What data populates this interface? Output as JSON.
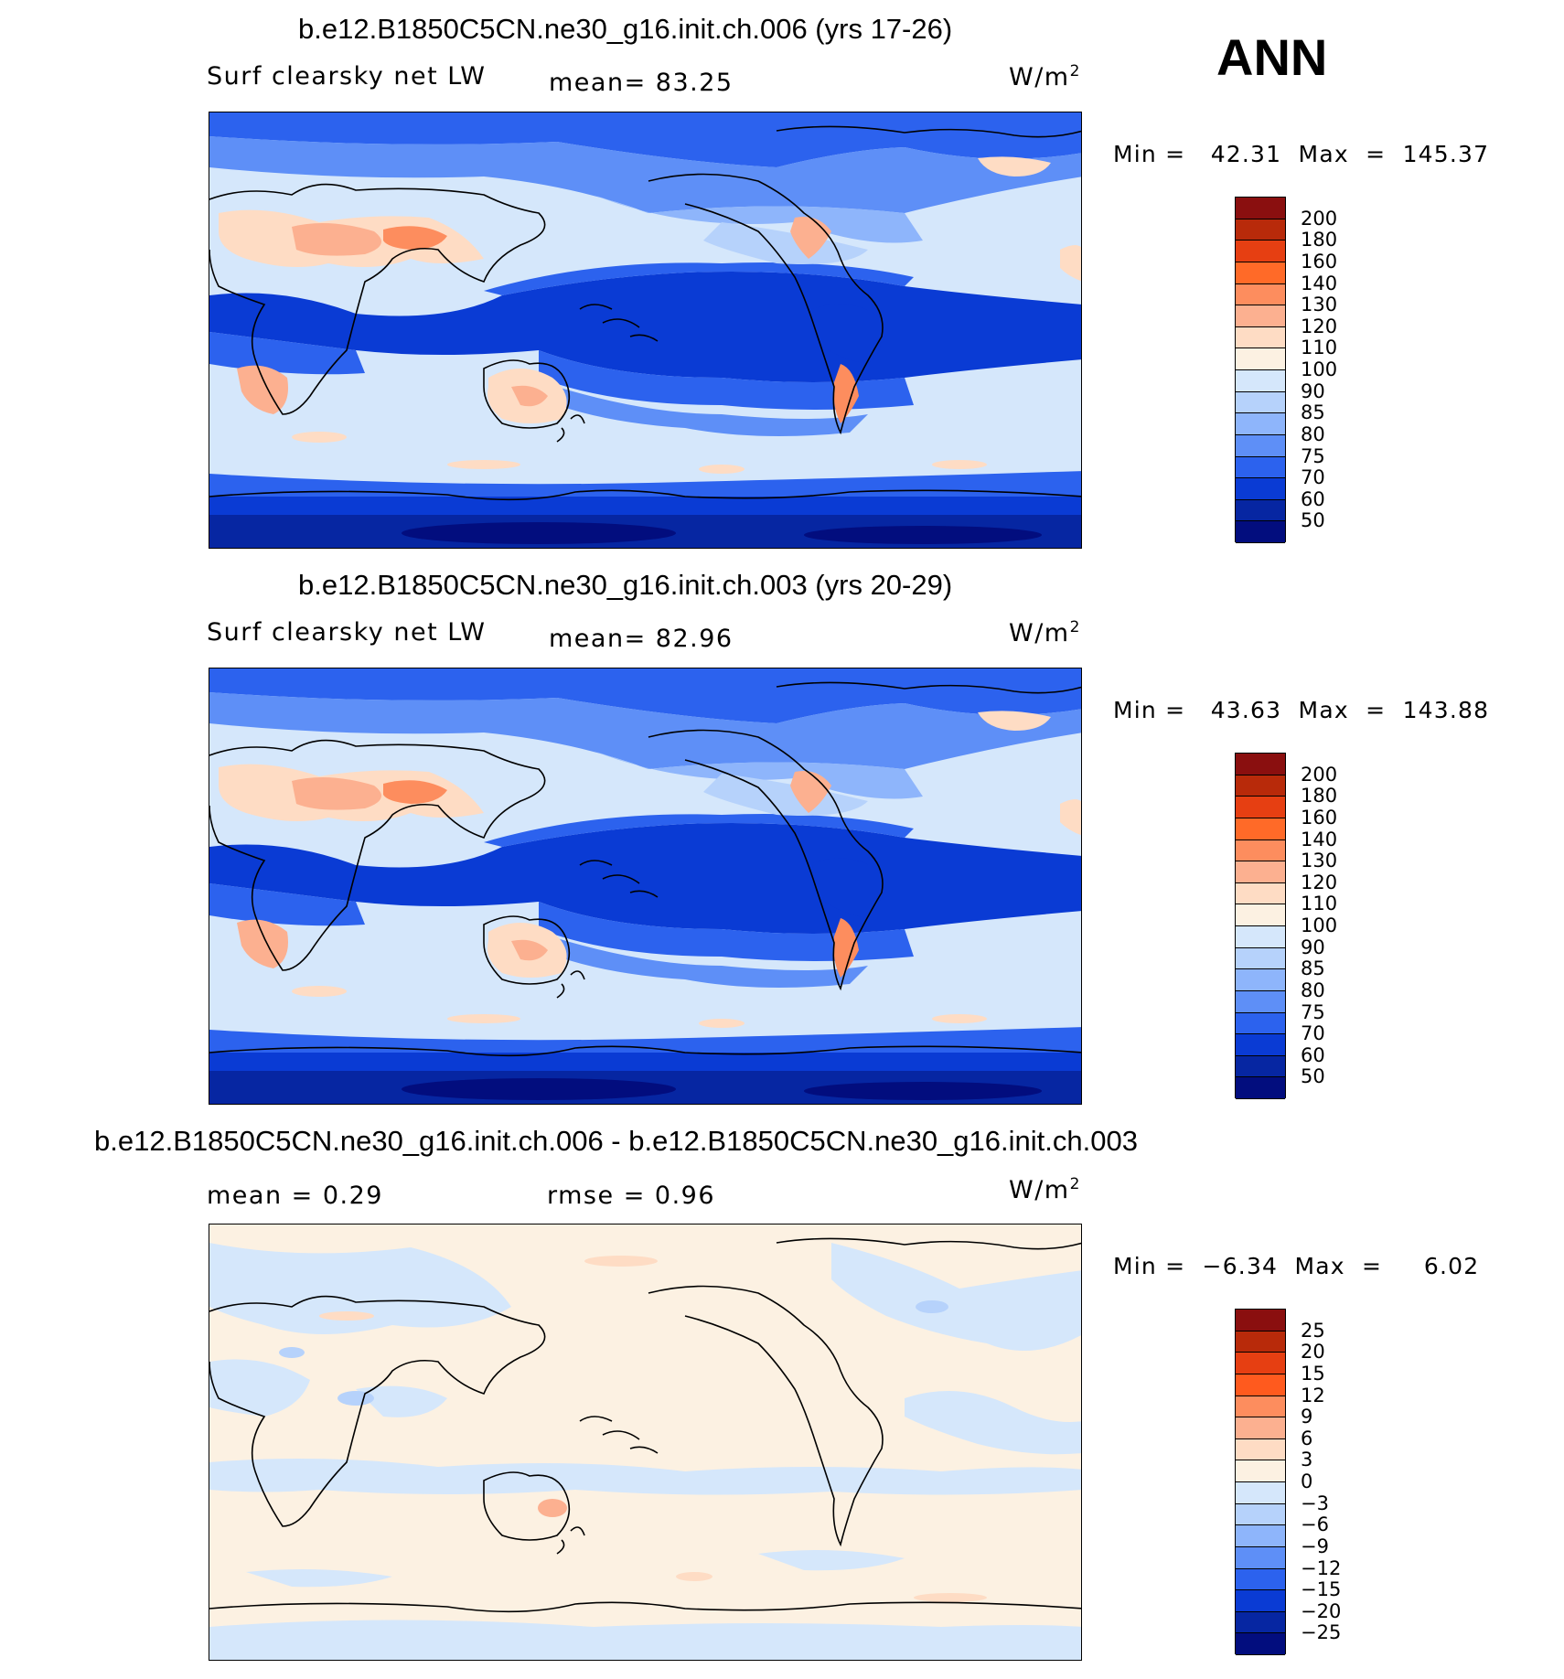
{
  "season": "ANN",
  "panels": [
    {
      "title": "b.e12.B1850C5CN.ne30_g16.init.ch.006 (yrs 17-26)",
      "left_label": "Surf clearsky net LW",
      "center_label": "mean=   83.25",
      "units_base": "W/m",
      "units_exp": "2",
      "minmax": "Min =   42.31  Max  =  145.37",
      "colorbar_labels": [
        "200",
        "180",
        "160",
        "140",
        "130",
        "120",
        "110",
        "100",
        "90",
        "85",
        "80",
        "75",
        "70",
        "60",
        "50"
      ],
      "colorbar_colors": [
        "#8a0f0f",
        "#b82a0a",
        "#e63f12",
        "#ff6a28",
        "#fd8d5e",
        "#fcb090",
        "#fedcc4",
        "#fcf1e2",
        "#d5e7fb",
        "#b6d2fb",
        "#8eb5fb",
        "#5e8ff7",
        "#2c62ee",
        "#0a3bd4",
        "#0626a2",
        "#020d7e"
      ]
    },
    {
      "title": "b.e12.B1850C5CN.ne30_g16.init.ch.003 (yrs 20-29)",
      "left_label": "Surf clearsky net LW",
      "center_label": "mean=   82.96",
      "units_base": "W/m",
      "units_exp": "2",
      "minmax": "Min =   43.63  Max  =  143.88",
      "colorbar_labels": [
        "200",
        "180",
        "160",
        "140",
        "130",
        "120",
        "110",
        "100",
        "90",
        "85",
        "80",
        "75",
        "70",
        "60",
        "50"
      ],
      "colorbar_colors": [
        "#8a0f0f",
        "#b82a0a",
        "#e63f12",
        "#ff6a28",
        "#fd8d5e",
        "#fcb090",
        "#fedcc4",
        "#fcf1e2",
        "#d5e7fb",
        "#b6d2fb",
        "#8eb5fb",
        "#5e8ff7",
        "#2c62ee",
        "#0a3bd4",
        "#0626a2",
        "#020d7e"
      ]
    },
    {
      "title": "b.e12.B1850C5CN.ne30_g16.init.ch.006 - b.e12.B1850C5CN.ne30_g16.init.ch.003",
      "left_label": "mean =     0.29",
      "center_label": "rmse =     0.96",
      "units_base": "W/m",
      "units_exp": "2",
      "minmax": "Min =  −6.34  Max  =     6.02",
      "colorbar_labels": [
        "25",
        "20",
        "15",
        "12",
        "9",
        "6",
        "3",
        "0",
        "−3",
        "−6",
        "−9",
        "−12",
        "−15",
        "−20",
        "−25"
      ],
      "colorbar_colors": [
        "#8a0f0f",
        "#b82a0a",
        "#e63f12",
        "#ff5a1e",
        "#fd8d5e",
        "#fcb090",
        "#fedcc4",
        "#fcf1e2",
        "#d5e7fb",
        "#b6d2fb",
        "#8eb5fb",
        "#5e8ff7",
        "#2c62ee",
        "#0a3bd4",
        "#0626a2",
        "#020d7e"
      ]
    }
  ]
}
